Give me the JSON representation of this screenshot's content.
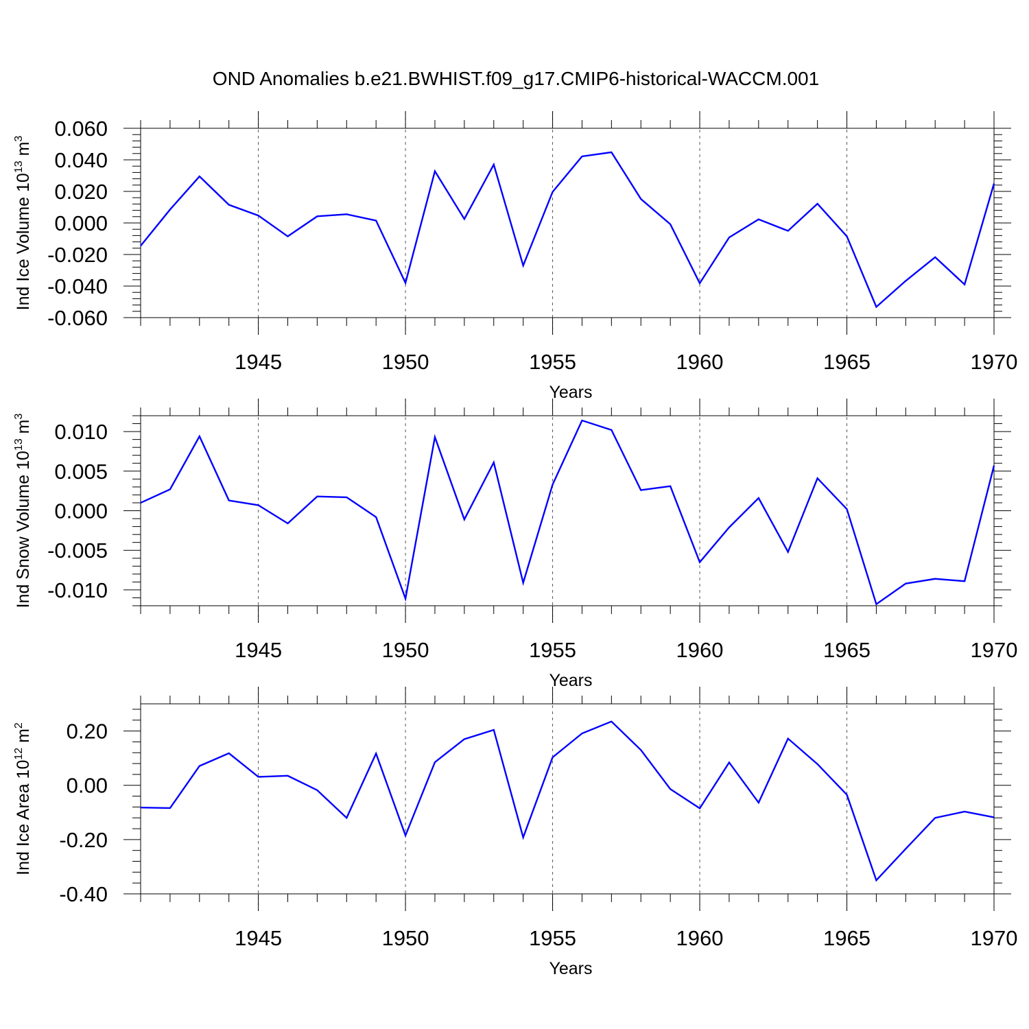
{
  "title": "OND Anomalies b.e21.BWHIST.f09_g17.CMIP6-historical-WACCM.001",
  "line_color": "#0000ff",
  "chart_data": [
    {
      "type": "line",
      "ylabel": "Ind Ice Volume 10",
      "ylabel_exp": "13",
      "ylabel_unit": " m",
      "ylabel_unit_exp": "3",
      "xlabel": "Years",
      "xlim": [
        1941,
        1970
      ],
      "ylim": [
        -0.06,
        0.06
      ],
      "yticks": [
        -0.06,
        -0.04,
        -0.02,
        0.0,
        0.02,
        0.04,
        0.06
      ],
      "ytick_labels": [
        "-0.060",
        "-0.040",
        "-0.020",
        "0.000",
        "0.020",
        "0.040",
        "0.060"
      ],
      "xticks": [
        1945,
        1950,
        1955,
        1960,
        1965,
        1970
      ],
      "xtick_labels": [
        "1945",
        "1950",
        "1955",
        "1960",
        "1965",
        "1970"
      ],
      "x": [
        1941,
        1942,
        1943,
        1944,
        1945,
        1946,
        1947,
        1948,
        1949,
        1950,
        1951,
        1952,
        1953,
        1954,
        1955,
        1956,
        1957,
        1958,
        1959,
        1960,
        1961,
        1962,
        1963,
        1964,
        1965,
        1966,
        1967,
        1968,
        1969,
        1970
      ],
      "values": [
        -0.0145,
        0.0085,
        0.0295,
        0.0115,
        0.0047,
        -0.0085,
        0.0042,
        0.0055,
        0.0015,
        -0.038,
        0.0328,
        0.0025,
        0.037,
        -0.027,
        0.0197,
        0.0422,
        0.0448,
        0.0152,
        -0.0008,
        -0.0382,
        -0.0092,
        0.0023,
        -0.005,
        0.0122,
        -0.0085,
        -0.0532,
        -0.0367,
        -0.0217,
        -0.039,
        0.025
      ]
    },
    {
      "type": "line",
      "ylabel": "Ind Snow Volume 10",
      "ylabel_exp": "13",
      "ylabel_unit": " m",
      "ylabel_unit_exp": "3",
      "xlabel": "Years",
      "xlim": [
        1941,
        1970
      ],
      "ylim": [
        -0.012,
        0.012
      ],
      "yticks": [
        -0.01,
        -0.005,
        0.0,
        0.005,
        0.01
      ],
      "ytick_labels": [
        "-0.010",
        "-0.005",
        "0.000",
        "0.005",
        "0.010"
      ],
      "xticks": [
        1945,
        1950,
        1955,
        1960,
        1965,
        1970
      ],
      "xtick_labels": [
        "1945",
        "1950",
        "1955",
        "1960",
        "1965",
        "1970"
      ],
      "x": [
        1941,
        1942,
        1943,
        1944,
        1945,
        1946,
        1947,
        1948,
        1949,
        1950,
        1951,
        1952,
        1953,
        1954,
        1955,
        1956,
        1957,
        1958,
        1959,
        1960,
        1961,
        1962,
        1963,
        1964,
        1965,
        1966,
        1967,
        1968,
        1969,
        1970
      ],
      "values": [
        0.001,
        0.0027,
        0.0094,
        0.0013,
        0.0007,
        -0.0016,
        0.0018,
        0.0017,
        -0.0008,
        -0.0111,
        0.0093,
        -0.0011,
        0.0061,
        -0.0091,
        0.0033,
        0.0114,
        0.0102,
        0.0026,
        0.0031,
        -0.0065,
        -0.0021,
        0.0016,
        -0.0052,
        0.0041,
        0.0002,
        -0.0118,
        -0.0092,
        -0.0086,
        -0.0089,
        0.0057
      ]
    },
    {
      "type": "line",
      "ylabel": "Ind Ice Area 10",
      "ylabel_exp": "12",
      "ylabel_unit": " m",
      "ylabel_unit_exp": "2",
      "xlabel": "Years",
      "xlim": [
        1941,
        1970
      ],
      "ylim": [
        -0.4,
        0.3
      ],
      "yticks": [
        -0.4,
        -0.2,
        0.0,
        0.2
      ],
      "ytick_labels": [
        "-0.40",
        "-0.20",
        "0.00",
        "0.20"
      ],
      "xticks": [
        1945,
        1950,
        1955,
        1960,
        1965,
        1970
      ],
      "xtick_labels": [
        "1945",
        "1950",
        "1955",
        "1960",
        "1965",
        "1970"
      ],
      "x": [
        1941,
        1942,
        1943,
        1944,
        1945,
        1946,
        1947,
        1948,
        1949,
        1950,
        1951,
        1952,
        1953,
        1954,
        1955,
        1956,
        1957,
        1958,
        1959,
        1960,
        1961,
        1962,
        1963,
        1964,
        1965,
        1966,
        1967,
        1968,
        1969,
        1970
      ],
      "values": [
        -0.082,
        -0.084,
        0.071,
        0.118,
        0.031,
        0.035,
        -0.018,
        -0.12,
        0.117,
        -0.185,
        0.085,
        0.17,
        0.204,
        -0.192,
        0.103,
        0.191,
        0.235,
        0.13,
        -0.014,
        -0.085,
        0.084,
        -0.064,
        0.172,
        0.078,
        -0.035,
        -0.35,
        -0.234,
        -0.12,
        -0.097,
        -0.118
      ]
    }
  ]
}
